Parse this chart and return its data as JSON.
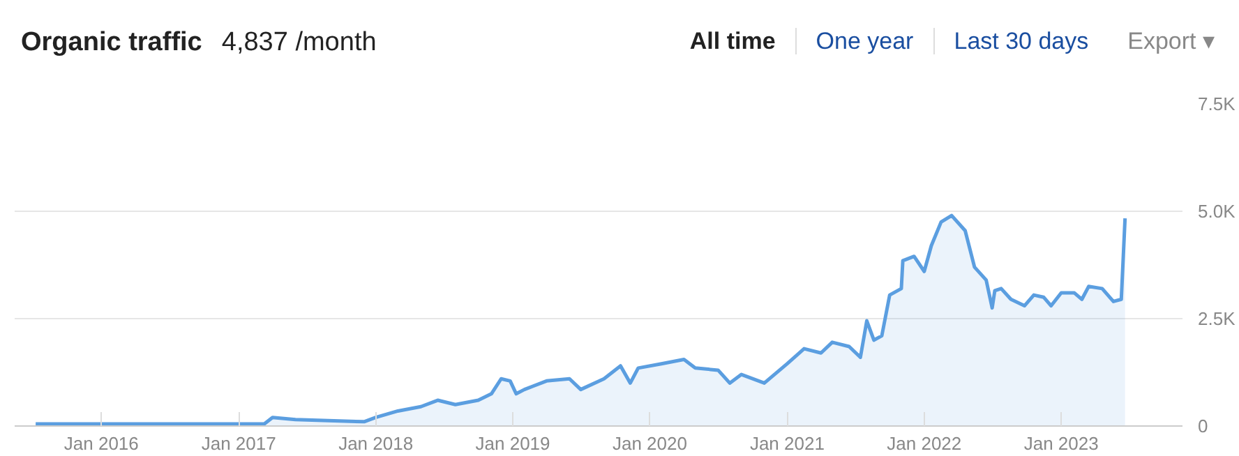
{
  "chart_data": {
    "type": "area",
    "title": "Organic traffic",
    "subtitle": "4,837 /month",
    "annotations": [
      "All time",
      "One year",
      "Last 30 days",
      "Export ▾"
    ],
    "x": [
      "2015-07-10",
      "2016-01-01",
      "2016-07-01",
      "2017-01-01",
      "2017-03-10",
      "2017-04-01",
      "2017-06-01",
      "2017-12-01",
      "2018-01-01",
      "2018-03-01",
      "2018-05-01",
      "2018-06-15",
      "2018-08-01",
      "2018-10-01",
      "2018-11-05",
      "2018-12-01",
      "2018-12-25",
      "2019-01-10",
      "2019-02-01",
      "2019-04-01",
      "2019-06-01",
      "2019-07-01",
      "2019-09-01",
      "2019-10-15",
      "2019-11-10",
      "2019-12-01",
      "2020-02-01",
      "2020-04-01",
      "2020-05-01",
      "2020-07-01",
      "2020-08-01",
      "2020-09-01",
      "2020-11-01",
      "2021-01-01",
      "2021-02-15",
      "2021-04-01",
      "2021-05-01",
      "2021-06-15",
      "2021-07-15",
      "2021-08-01",
      "2021-08-20",
      "2021-09-10",
      "2021-10-01",
      "2021-11-01",
      "2021-11-05",
      "2021-12-05",
      "2022-01-01",
      "2022-01-20",
      "2022-02-15",
      "2022-03-15",
      "2022-04-20",
      "2022-05-15",
      "2022-06-15",
      "2022-07-01",
      "2022-07-08",
      "2022-07-25",
      "2022-08-20",
      "2022-09-25",
      "2022-10-20",
      "2022-11-15",
      "2022-12-05",
      "2023-01-01",
      "2023-02-05",
      "2023-02-25",
      "2023-03-15",
      "2023-04-20",
      "2023-05-20",
      "2023-06-10",
      "2023-06-20"
    ],
    "series": [
      {
        "color": "#5b9ee0",
        "values": [
          50,
          50,
          50,
          50,
          50,
          200,
          150,
          100,
          200,
          350,
          450,
          600,
          500,
          600,
          750,
          1100,
          1050,
          750,
          850,
          1050,
          1100,
          850,
          1100,
          1400,
          1000,
          1350,
          1450,
          1550,
          1350,
          1300,
          1000,
          1200,
          1000,
          1450,
          1800,
          1700,
          1950,
          1850,
          1600,
          2450,
          2000,
          2100,
          3050,
          3200,
          3850,
          3950,
          3600,
          4200,
          4750,
          4900,
          4550,
          3700,
          3400,
          2750,
          3150,
          3200,
          2950,
          2800,
          3050,
          3000,
          2800,
          3100,
          3100,
          2950,
          3250,
          3200,
          2900,
          2950,
          4837
        ]
      }
    ],
    "xlim": [
      "2015-05-15",
      "2023-11-20"
    ],
    "xticks": [
      {
        "value": "2016-01-01",
        "label": "Jan 2016"
      },
      {
        "value": "2017-01-01",
        "label": "Jan 2017"
      },
      {
        "value": "2018-01-01",
        "label": "Jan 2018"
      },
      {
        "value": "2019-01-01",
        "label": "Jan 2019"
      },
      {
        "value": "2020-01-01",
        "label": "Jan 2020"
      },
      {
        "value": "2021-01-01",
        "label": "Jan 2021"
      },
      {
        "value": "2022-01-01",
        "label": "Jan 2022"
      },
      {
        "value": "2023-01-01",
        "label": "Jan 2023"
      }
    ],
    "ylim": [
      0,
      7500
    ],
    "yticks": [
      0,
      {
        "value": 2500,
        "label": "2.5K"
      },
      {
        "value": 5000,
        "label": "5.0K"
      },
      {
        "value": 7500,
        "label": "7.5K"
      }
    ],
    "grid": "y"
  }
}
